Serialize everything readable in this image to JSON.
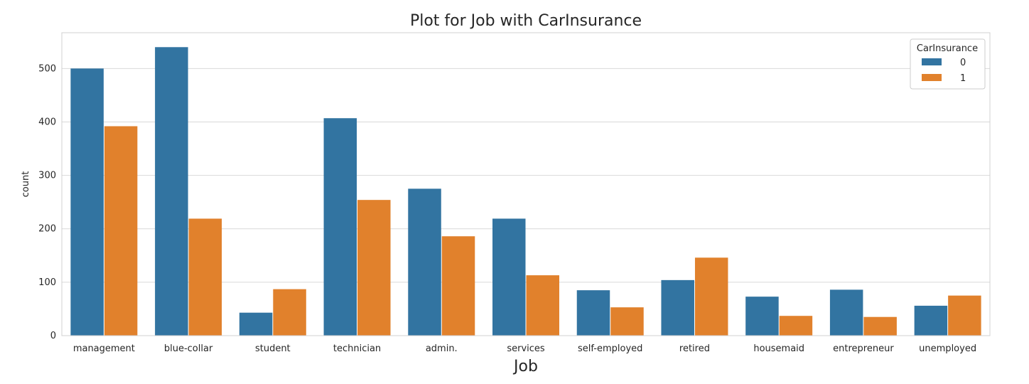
{
  "chart_data": {
    "type": "bar",
    "title": "Plot for Job with CarInsurance",
    "xlabel": "Job",
    "ylabel": "count",
    "categories": [
      "management",
      "blue-collar",
      "student",
      "technician",
      "admin.",
      "services",
      "self-employed",
      "retired",
      "housemaid",
      "entrepreneur",
      "unemployed"
    ],
    "series": [
      {
        "name": "0",
        "color": "#3274a1",
        "values": [
          500,
          540,
          43,
          407,
          275,
          219,
          85,
          104,
          73,
          86,
          56
        ]
      },
      {
        "name": "1",
        "color": "#e1812c",
        "values": [
          392,
          219,
          87,
          254,
          186,
          113,
          53,
          146,
          37,
          35,
          75
        ]
      }
    ],
    "yticks": [
      0,
      100,
      200,
      300,
      400,
      500
    ],
    "ylim": [
      0,
      567
    ],
    "grid": true,
    "legend": {
      "title": "CarInsurance",
      "position": "top-right"
    }
  }
}
